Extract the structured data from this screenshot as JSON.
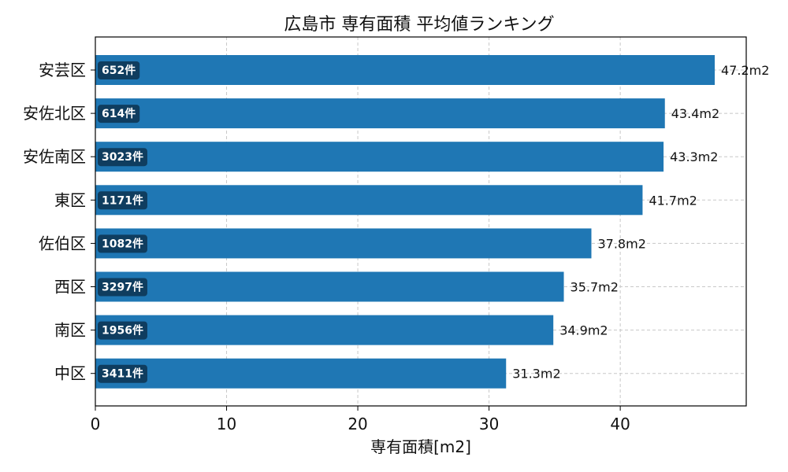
{
  "chart_data": {
    "type": "bar",
    "orientation": "horizontal",
    "title": "広島市 専有面積 平均値ランキング",
    "xlabel": "専有面積[m2]",
    "ylabel": "",
    "xlim": [
      0,
      49.6
    ],
    "xticks": [
      "0",
      "10",
      "20",
      "30",
      "40"
    ],
    "grid": true,
    "legend": "",
    "bar_color": "#1f77b4",
    "badge_color": "#0f3d5f",
    "categories": [
      "安芸区",
      "安佐北区",
      "安佐南区",
      "東区",
      "佐伯区",
      "西区",
      "南区",
      "中区"
    ],
    "values": [
      47.2,
      43.4,
      43.3,
      41.7,
      37.8,
      35.7,
      34.9,
      31.3
    ],
    "value_labels": [
      "47.2m2",
      "43.4m2",
      "43.3m2",
      "41.7m2",
      "37.8m2",
      "35.7m2",
      "34.9m2",
      "31.3m2"
    ],
    "counts": [
      "652件",
      "614件",
      "3023件",
      "1171件",
      "1082件",
      "3297件",
      "1956件",
      "3411件"
    ]
  }
}
